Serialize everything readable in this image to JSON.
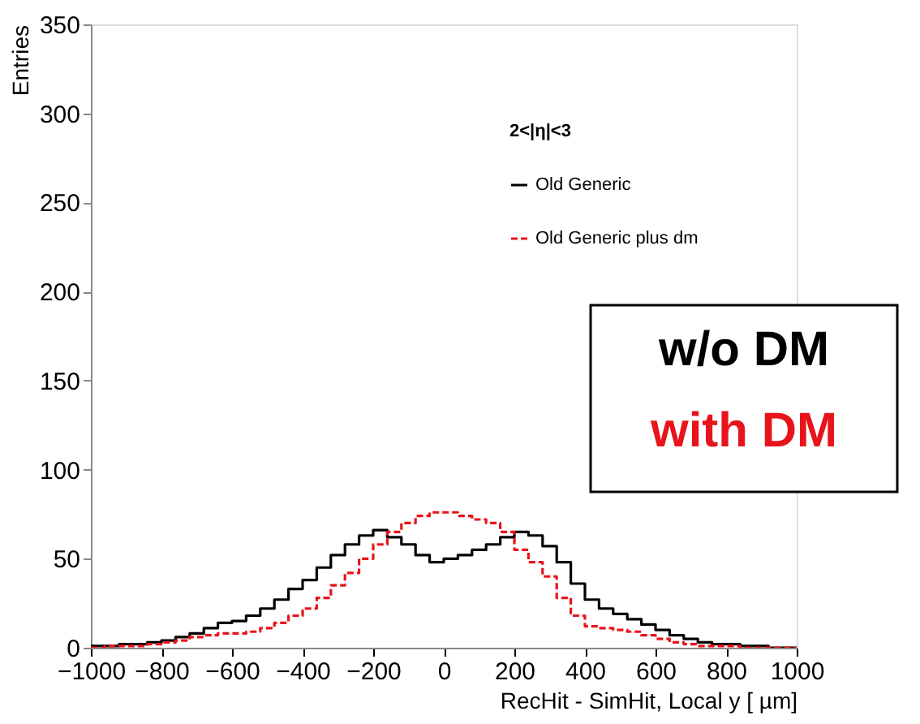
{
  "chart_data": {
    "type": "histogram",
    "xlabel": "RecHit - SimHit, Local y [ µm]",
    "ylabel": "Entries",
    "legend_title": "2<|η|<3",
    "bins": [
      -1000,
      -960,
      -920,
      -880,
      -840,
      -800,
      -760,
      -720,
      -680,
      -640,
      -600,
      -560,
      -520,
      -480,
      -440,
      -400,
      -360,
      -320,
      -280,
      -240,
      -200,
      -160,
      -120,
      -80,
      -40,
      0,
      40,
      80,
      120,
      160,
      200,
      240,
      280,
      320,
      360,
      400,
      440,
      480,
      520,
      560,
      600,
      640,
      680,
      720,
      760,
      800,
      840,
      880,
      920,
      960,
      1000
    ],
    "series": [
      {
        "name": "Old Generic",
        "color": "#000000",
        "line_style": "solid",
        "values": [
          1,
          1,
          2,
          2,
          3,
          4,
          6,
          8,
          11,
          14,
          15,
          18,
          22,
          27,
          33,
          38,
          45,
          52,
          58,
          63,
          66,
          62,
          58,
          52,
          48,
          50,
          52,
          55,
          58,
          62,
          65,
          63,
          57,
          48,
          36,
          27,
          22,
          19,
          16,
          13,
          10,
          7,
          5,
          3,
          2,
          2,
          1,
          1,
          0,
          0
        ]
      },
      {
        "name": "Old Generic plus dm",
        "color": "#e8141c",
        "line_style": "dashed",
        "values": [
          0,
          1,
          1,
          1,
          2,
          3,
          4,
          6,
          7,
          8,
          8,
          9,
          11,
          14,
          18,
          22,
          28,
          35,
          42,
          50,
          58,
          65,
          70,
          74,
          76,
          76,
          74,
          72,
          70,
          65,
          55,
          48,
          40,
          28,
          18,
          12,
          11,
          10,
          9,
          7,
          5,
          3,
          2,
          1,
          1,
          1,
          0,
          0,
          0,
          0
        ]
      }
    ],
    "xlim": [
      -1000,
      1000
    ],
    "xticks": [
      -1000,
      -800,
      -600,
      -400,
      -200,
      0,
      200,
      400,
      600,
      800,
      1000
    ],
    "ylim": [
      0,
      350
    ],
    "yticks": [
      0,
      50,
      100,
      150,
      200,
      250,
      300,
      350
    ],
    "grid": false,
    "legend": "top right",
    "annotations": [
      "w/o DM",
      "with DM"
    ]
  }
}
